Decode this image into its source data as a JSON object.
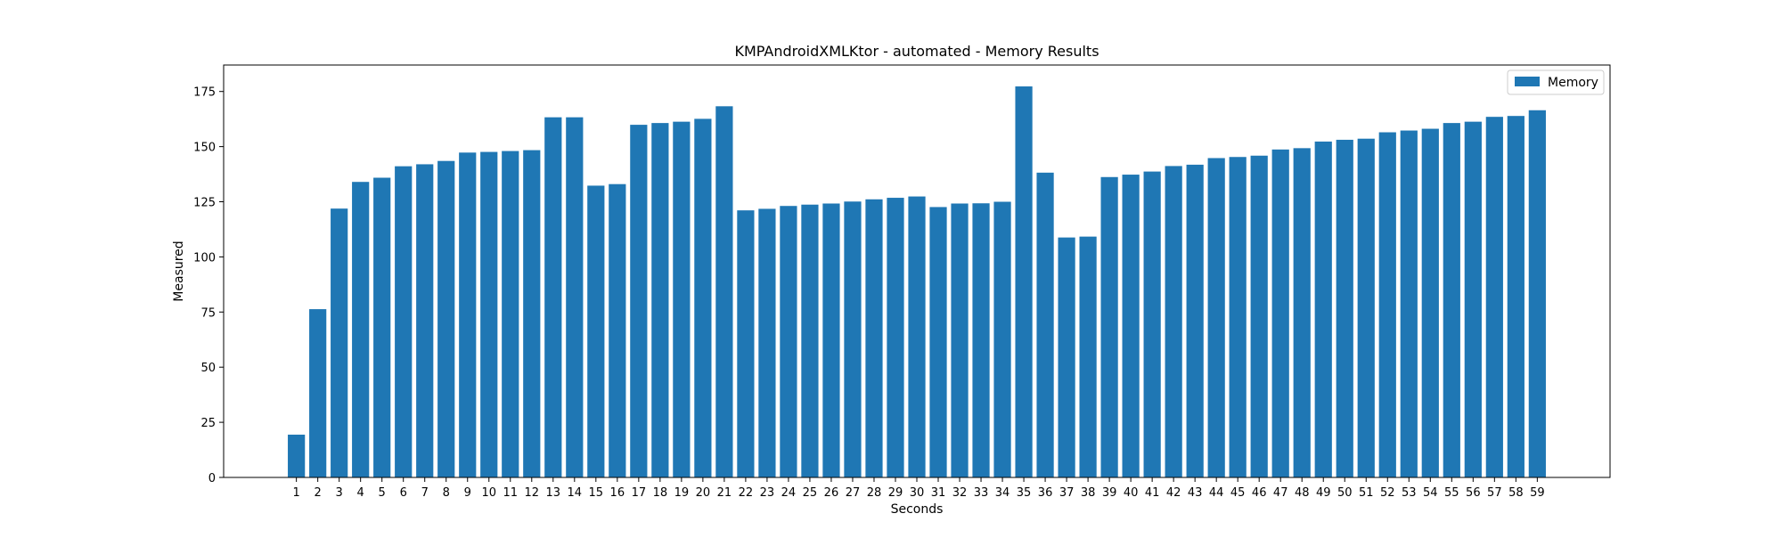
{
  "chart_data": {
    "type": "bar",
    "title": "KMPAndroidXMLKtor - automated - Memory Results",
    "xlabel": "Seconds",
    "ylabel": "Measured",
    "ylim": [
      0,
      187
    ],
    "yticks": [
      0,
      25,
      50,
      75,
      100,
      125,
      150,
      175
    ],
    "grid": false,
    "legend_position": "top-right",
    "categories": [
      "1",
      "2",
      "3",
      "4",
      "5",
      "6",
      "7",
      "8",
      "9",
      "10",
      "11",
      "12",
      "13",
      "14",
      "15",
      "16",
      "17",
      "18",
      "19",
      "20",
      "21",
      "22",
      "23",
      "24",
      "25",
      "26",
      "27",
      "28",
      "29",
      "30",
      "31",
      "32",
      "33",
      "34",
      "35",
      "36",
      "37",
      "38",
      "39",
      "40",
      "41",
      "42",
      "43",
      "44",
      "45",
      "46",
      "47",
      "48",
      "49",
      "50",
      "51",
      "52",
      "53",
      "54",
      "55",
      "56",
      "57",
      "58",
      "59"
    ],
    "series": [
      {
        "name": "Memory",
        "color": "#1f77b4",
        "values": [
          19.4,
          76.3,
          121.9,
          134.0,
          135.9,
          141.1,
          142.0,
          143.5,
          147.3,
          147.6,
          148.0,
          148.4,
          163.3,
          163.3,
          132.3,
          133.0,
          159.9,
          160.7,
          161.3,
          162.6,
          168.3,
          121.1,
          121.8,
          123.1,
          123.7,
          124.2,
          125.1,
          126.1,
          126.8,
          127.4,
          122.6,
          124.2,
          124.3,
          125.0,
          177.3,
          138.2,
          108.8,
          109.2,
          136.2,
          137.3,
          138.7,
          141.2,
          141.8,
          144.8,
          145.3,
          145.9,
          148.7,
          149.3,
          152.3,
          153.1,
          153.6,
          156.5,
          157.3,
          158.1,
          160.7,
          161.3,
          163.5,
          163.9,
          166.5
        ]
      }
    ]
  }
}
